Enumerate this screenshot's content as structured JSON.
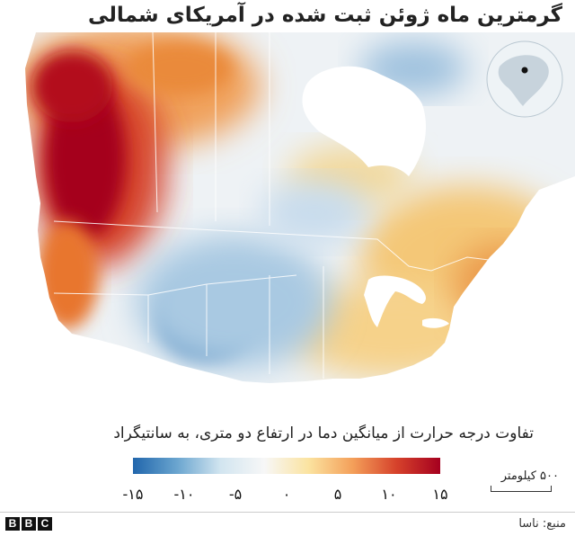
{
  "title": "گرمترین ماه ژوئن ثبت شده در آمریکای شمالی",
  "legend": {
    "title": "تفاوت درجه حرارت از میانگین دما در ارتفاع دو متری، به سانتیگراد",
    "ticks": [
      "-۱۵",
      "-۱۰",
      "-۵",
      "۰",
      "۵",
      "۱۰",
      "۱۵"
    ],
    "tick_values": [
      -15,
      -10,
      -5,
      0,
      5,
      10,
      15
    ],
    "range": [
      -15,
      15
    ],
    "colors": [
      "#2166ac",
      "#6aa5cf",
      "#d2e5f0",
      "#f7f7f7",
      "#fbe3a0",
      "#f4a05a",
      "#d6422b",
      "#a5001f"
    ]
  },
  "scale": {
    "label": "۵۰۰ کیلومتر"
  },
  "logo": {
    "letters": [
      "B",
      "B",
      "C"
    ]
  },
  "source": "منبع: ناسا",
  "colors": {
    "hot": "#b3101f",
    "warm": "#e9822e",
    "mild": "#f6d58a",
    "neutral": "#eef2f5",
    "cool": "#a9c9e2",
    "cold": "#3d7bb6",
    "ice": "#ffffff"
  },
  "icons": [
    "globe-locator-icon"
  ]
}
